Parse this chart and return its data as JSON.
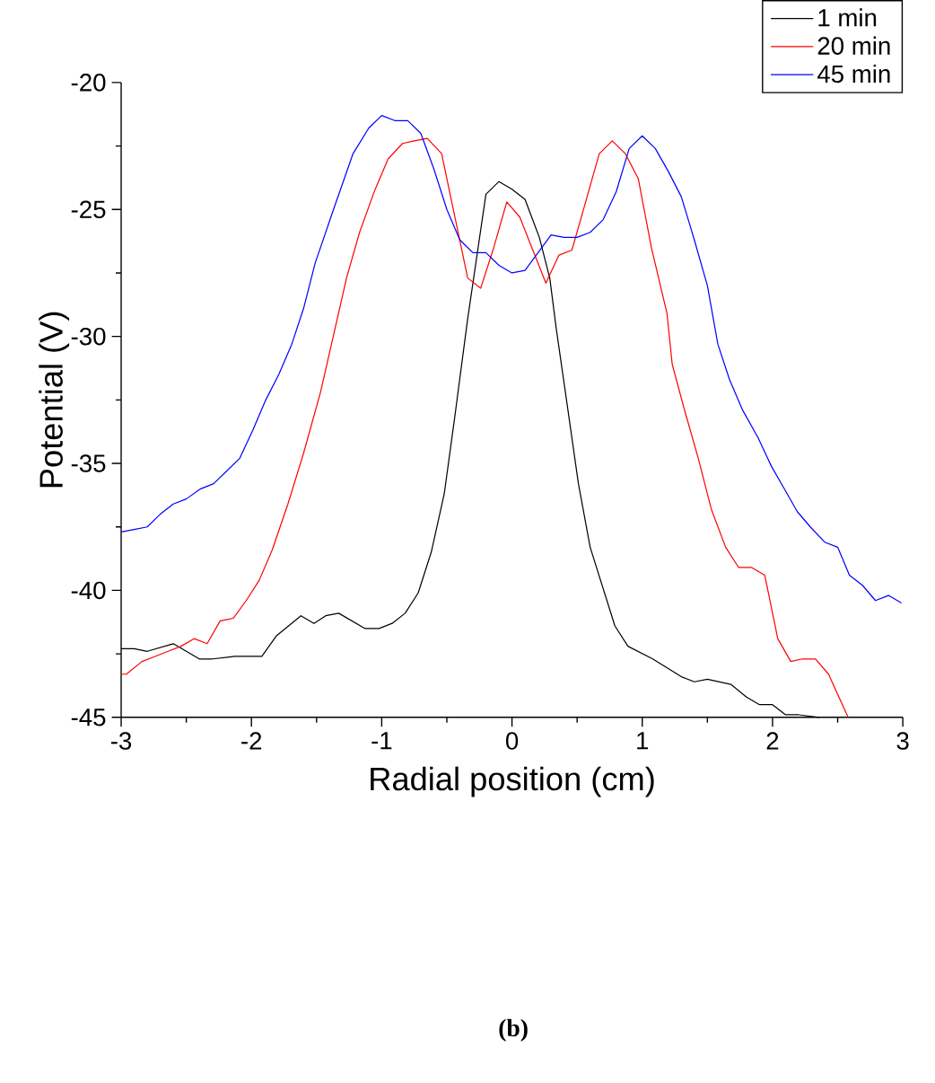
{
  "chart_data": {
    "type": "line",
    "xlabel": "Radial position (cm)",
    "ylabel": "Potential (V)",
    "xlim": [
      -3,
      3
    ],
    "ylim": [
      -45,
      -20
    ],
    "xticks": [
      -3,
      -2,
      -1,
      0,
      1,
      2,
      3
    ],
    "yticks": [
      -45,
      -40,
      -35,
      -30,
      -25,
      -20
    ],
    "legend": "top right",
    "marker": "none",
    "line_style": "solid",
    "annotations": [
      "(b)"
    ],
    "series": [
      {
        "name": "1 min",
        "color": "#000000",
        "x": [
          -3,
          -2.9,
          -2.8,
          -2.6,
          -2.4,
          -2.3,
          -2.13,
          -1.92,
          -1.81,
          -1.62,
          -1.52,
          -1.43,
          -1.33,
          -1.13,
          -1.02,
          -0.92,
          -0.82,
          -0.72,
          -0.62,
          -0.52,
          -0.44,
          -0.34,
          -0.2,
          -0.1,
          0,
          0.1,
          0.21,
          0.29,
          0.34,
          0.41,
          0.51,
          0.6,
          0.79,
          0.89,
          1.08,
          1.3,
          1.4,
          1.5,
          1.68,
          1.8,
          1.9,
          2.0,
          2.1,
          2.2,
          2.36
        ],
        "values": [
          -42.3,
          -42.3,
          -42.4,
          -42.1,
          -42.7,
          -42.7,
          -42.6,
          -42.6,
          -41.8,
          -41.0,
          -41.3,
          -41.0,
          -40.9,
          -41.5,
          -41.5,
          -41.3,
          -40.9,
          -40.1,
          -38.5,
          -36.2,
          -33.2,
          -29.3,
          -24.4,
          -23.9,
          -24.2,
          -24.6,
          -26.1,
          -27.7,
          -29.7,
          -32.2,
          -35.8,
          -38.3,
          -41.4,
          -42.2,
          -42.7,
          -43.4,
          -43.6,
          -43.5,
          -43.7,
          -44.2,
          -44.5,
          -44.5,
          -44.9,
          -44.9,
          -45
        ]
      },
      {
        "name": "20 min",
        "color": "#ff0000",
        "x": [
          -3,
          -2.96,
          -2.84,
          -2.74,
          -2.64,
          -2.54,
          -2.44,
          -2.34,
          -2.24,
          -2.14,
          -2.04,
          -1.94,
          -1.84,
          -1.72,
          -1.6,
          -1.47,
          -1.35,
          -1.27,
          -1.17,
          -1.05,
          -0.95,
          -0.84,
          -0.75,
          -0.65,
          -0.54,
          -0.43,
          -0.34,
          -0.24,
          -0.14,
          -0.04,
          0.06,
          0.16,
          0.26,
          0.36,
          0.46,
          0.56,
          0.67,
          0.77,
          0.87,
          0.97,
          1.07,
          1.19,
          1.23,
          1.33,
          1.43,
          1.53,
          1.64,
          1.74,
          1.84,
          1.94,
          2.04,
          2.14,
          2.23,
          2.33,
          2.43,
          2.58
        ],
        "values": [
          -43.3,
          -43.3,
          -42.8,
          -42.6,
          -42.4,
          -42.2,
          -41.9,
          -42.1,
          -41.2,
          -41.1,
          -40.4,
          -39.6,
          -38.4,
          -36.6,
          -34.6,
          -32.2,
          -29.5,
          -27.7,
          -25.9,
          -24.2,
          -23.0,
          -22.4,
          -22.3,
          -22.2,
          -22.8,
          -25.5,
          -27.7,
          -28.1,
          -26.5,
          -24.7,
          -25.3,
          -26.6,
          -27.9,
          -26.8,
          -26.6,
          -24.8,
          -22.8,
          -22.3,
          -22.8,
          -23.8,
          -26.5,
          -29.1,
          -31.1,
          -33.0,
          -34.8,
          -36.8,
          -38.3,
          -39.1,
          -39.1,
          -39.4,
          -41.9,
          -42.8,
          -42.7,
          -42.7,
          -43.3,
          -45
        ]
      },
      {
        "name": "45 min",
        "color": "#0000ff",
        "x": [
          -3,
          -2.9,
          -2.8,
          -2.7,
          -2.6,
          -2.5,
          -2.39,
          -2.29,
          -2.19,
          -2.09,
          -1.99,
          -1.89,
          -1.79,
          -1.69,
          -1.6,
          -1.51,
          -1.37,
          -1.22,
          -1.1,
          -1.0,
          -0.9,
          -0.8,
          -0.7,
          -0.6,
          -0.5,
          -0.4,
          -0.3,
          -0.2,
          -0.1,
          0,
          0.1,
          0.2,
          0.3,
          0.4,
          0.5,
          0.6,
          0.7,
          0.8,
          0.9,
          1.0,
          1.1,
          1.2,
          1.3,
          1.4,
          1.5,
          1.58,
          1.67,
          1.77,
          1.89,
          1.99,
          2.09,
          2.19,
          2.29,
          2.4,
          2.5,
          2.59,
          2.69,
          2.79,
          2.89,
          2.99
        ],
        "values": [
          -37.7,
          -37.6,
          -37.5,
          -37.0,
          -36.6,
          -36.4,
          -36.0,
          -35.8,
          -35.3,
          -34.8,
          -33.7,
          -32.5,
          -31.5,
          -30.3,
          -28.9,
          -27.1,
          -25.0,
          -22.8,
          -21.8,
          -21.3,
          -21.5,
          -21.5,
          -22.0,
          -23.4,
          -25.0,
          -26.2,
          -26.7,
          -26.7,
          -27.2,
          -27.5,
          -27.4,
          -26.7,
          -26.0,
          -26.1,
          -26.1,
          -25.9,
          -25.4,
          -24.3,
          -22.6,
          -22.1,
          -22.6,
          -23.5,
          -24.5,
          -26.2,
          -28.0,
          -30.3,
          -31.7,
          -32.9,
          -34.0,
          -35.1,
          -36.0,
          -36.9,
          -37.5,
          -38.1,
          -38.3,
          -39.4,
          -39.8,
          -40.4,
          -40.2,
          -40.5
        ]
      }
    ]
  }
}
